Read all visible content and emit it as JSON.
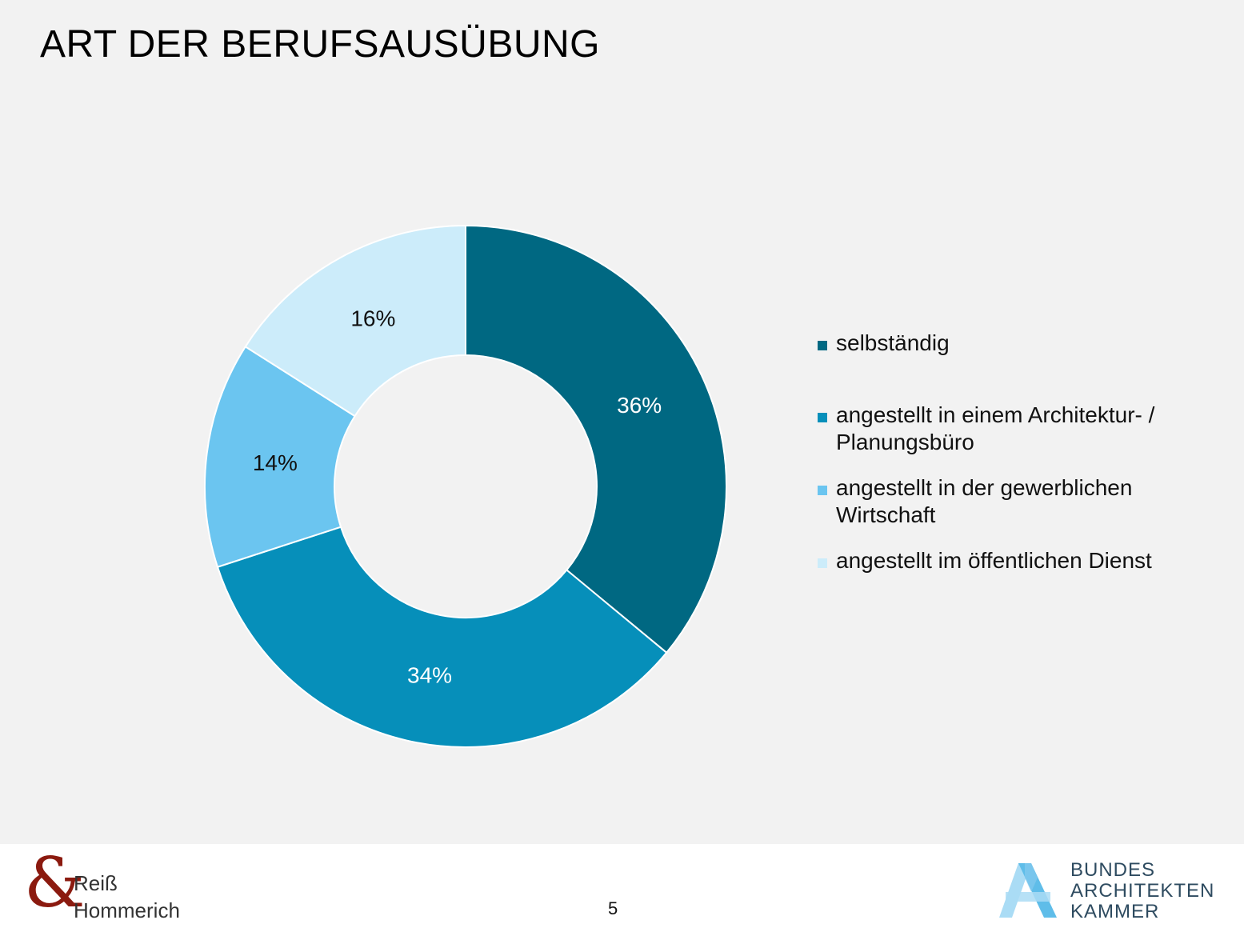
{
  "title": "ART DER BERUFSAUSÜBUNG",
  "chart_data": {
    "type": "pie",
    "variant": "donut",
    "categories": [
      "selbständig",
      "angestellt in einem Architektur- / Planungsbüro",
      "angestellt in der gewerblichen Wirtschaft",
      "angestellt im öffentlichen Dienst"
    ],
    "values": [
      36,
      34,
      14,
      16
    ],
    "labels": [
      "36%",
      "34%",
      "14%",
      "16%"
    ],
    "colors": [
      "#006882",
      "#068fba",
      "#6bc5f0",
      "#ccecfa"
    ],
    "label_colors": [
      "#ffffff",
      "#ffffff",
      "#111111",
      "#111111"
    ],
    "legend": {
      "position": "right",
      "items": [
        {
          "line1": "selbständig",
          "line2": ""
        },
        {
          "line1": "angestellt in einem Architektur- /",
          "line2": "Planungsbüro"
        },
        {
          "line1": "angestellt in der gewerblichen",
          "line2": "Wirtschaft"
        },
        {
          "line1": "angestellt im öffentlichen Dienst",
          "line2": ""
        }
      ]
    }
  },
  "footer": {
    "left_logo": {
      "line1": "Reiß",
      "line2": "Hommerich"
    },
    "page_number": "5",
    "right_logo": {
      "line1": "BUNDES",
      "line2": "ARCHITEKTEN",
      "line3": "KAMMER"
    }
  }
}
